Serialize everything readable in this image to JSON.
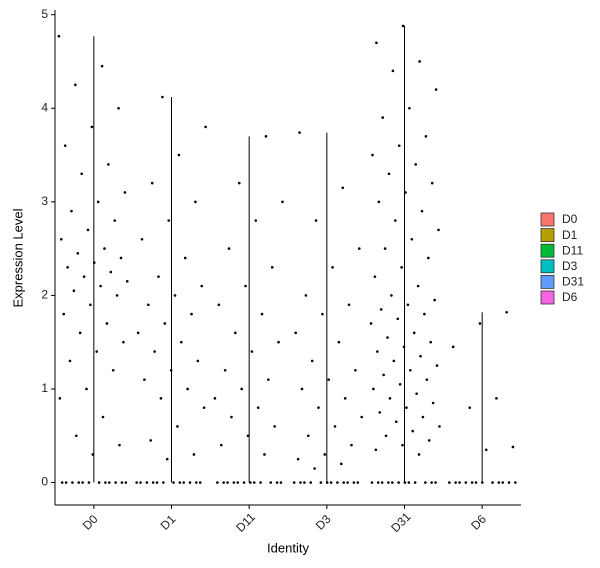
{
  "chart_data": {
    "type": "violin",
    "x_label": "Identity",
    "y_label": "Expression Level",
    "categories": [
      "D0",
      "D1",
      "D11",
      "D3",
      "D31",
      "D6"
    ],
    "ylim": [
      -0.24,
      5.05
    ],
    "yticks": [
      0,
      1,
      2,
      3,
      4,
      5
    ],
    "grid": false,
    "legend": "right",
    "point_color": "#000000",
    "series": [
      {
        "name": "D0",
        "color": "#F8766D",
        "values": [
          4.77,
          4.45,
          4.25,
          4.0,
          3.8,
          3.6,
          3.4,
          3.3,
          3.1,
          3.0,
          2.9,
          2.8,
          2.7,
          2.6,
          2.5,
          2.45,
          2.4,
          2.35,
          2.3,
          2.25,
          2.2,
          2.15,
          2.1,
          2.05,
          2.0,
          1.9,
          1.8,
          1.7,
          1.6,
          1.5,
          1.4,
          1.3,
          1.2,
          1.0,
          0.9,
          0.7,
          0.5,
          0.4,
          0.3,
          0,
          0,
          0,
          0,
          0,
          0,
          0,
          0,
          0,
          0,
          0,
          0
        ]
      },
      {
        "name": "D1",
        "color": "#B79F00",
        "values": [
          4.12,
          3.8,
          3.5,
          3.2,
          3.0,
          2.8,
          2.6,
          2.4,
          2.2,
          2.1,
          2.0,
          1.9,
          1.8,
          1.7,
          1.6,
          1.5,
          1.4,
          1.3,
          1.2,
          1.1,
          1.0,
          0.9,
          0.8,
          0.6,
          0.45,
          0.3,
          0.25,
          0,
          0,
          0,
          0,
          0,
          0,
          0,
          0,
          0,
          0,
          0,
          0
        ]
      },
      {
        "name": "D11",
        "color": "#00BA38",
        "values": [
          3.7,
          3.2,
          3.0,
          2.8,
          2.5,
          2.3,
          2.1,
          1.9,
          1.8,
          1.6,
          1.5,
          1.4,
          1.2,
          1.1,
          1.0,
          0.9,
          0.8,
          0.7,
          0.6,
          0.5,
          0.4,
          0.3,
          0,
          0,
          0,
          0,
          0,
          0,
          0,
          0,
          0,
          0,
          0,
          0
        ]
      },
      {
        "name": "D3",
        "color": "#00BFC4",
        "values": [
          3.74,
          3.15,
          2.8,
          2.5,
          2.3,
          2.0,
          1.9,
          1.8,
          1.6,
          1.5,
          1.3,
          1.2,
          1.1,
          1.0,
          0.9,
          0.8,
          0.7,
          0.6,
          0.5,
          0.4,
          0.3,
          0.25,
          0.2,
          0.15,
          0,
          0,
          0,
          0,
          0,
          0,
          0,
          0,
          0,
          0,
          0,
          0
        ]
      },
      {
        "name": "D31",
        "color": "#619CFF",
        "values": [
          4.88,
          4.7,
          4.5,
          4.4,
          4.2,
          4.0,
          3.9,
          3.7,
          3.6,
          3.5,
          3.4,
          3.3,
          3.2,
          3.1,
          3.0,
          2.9,
          2.8,
          2.7,
          2.6,
          2.5,
          2.4,
          2.3,
          2.2,
          2.1,
          2.0,
          1.95,
          1.9,
          1.85,
          1.8,
          1.75,
          1.7,
          1.6,
          1.55,
          1.5,
          1.45,
          1.4,
          1.35,
          1.3,
          1.25,
          1.2,
          1.15,
          1.1,
          1.05,
          1.0,
          0.95,
          0.9,
          0.85,
          0.8,
          0.75,
          0.7,
          0.65,
          0.6,
          0.55,
          0.5,
          0.45,
          0.4,
          0.35,
          0.3,
          0,
          0,
          0,
          0,
          0,
          0,
          0,
          0,
          0,
          0,
          0,
          0
        ]
      },
      {
        "name": "D6",
        "color": "#F564E3",
        "values": [
          1.82,
          1.7,
          1.45,
          0.9,
          0.8,
          0.38,
          0.35,
          0,
          0,
          0,
          0,
          0,
          0,
          0,
          0,
          0,
          0,
          0,
          0
        ]
      }
    ]
  }
}
